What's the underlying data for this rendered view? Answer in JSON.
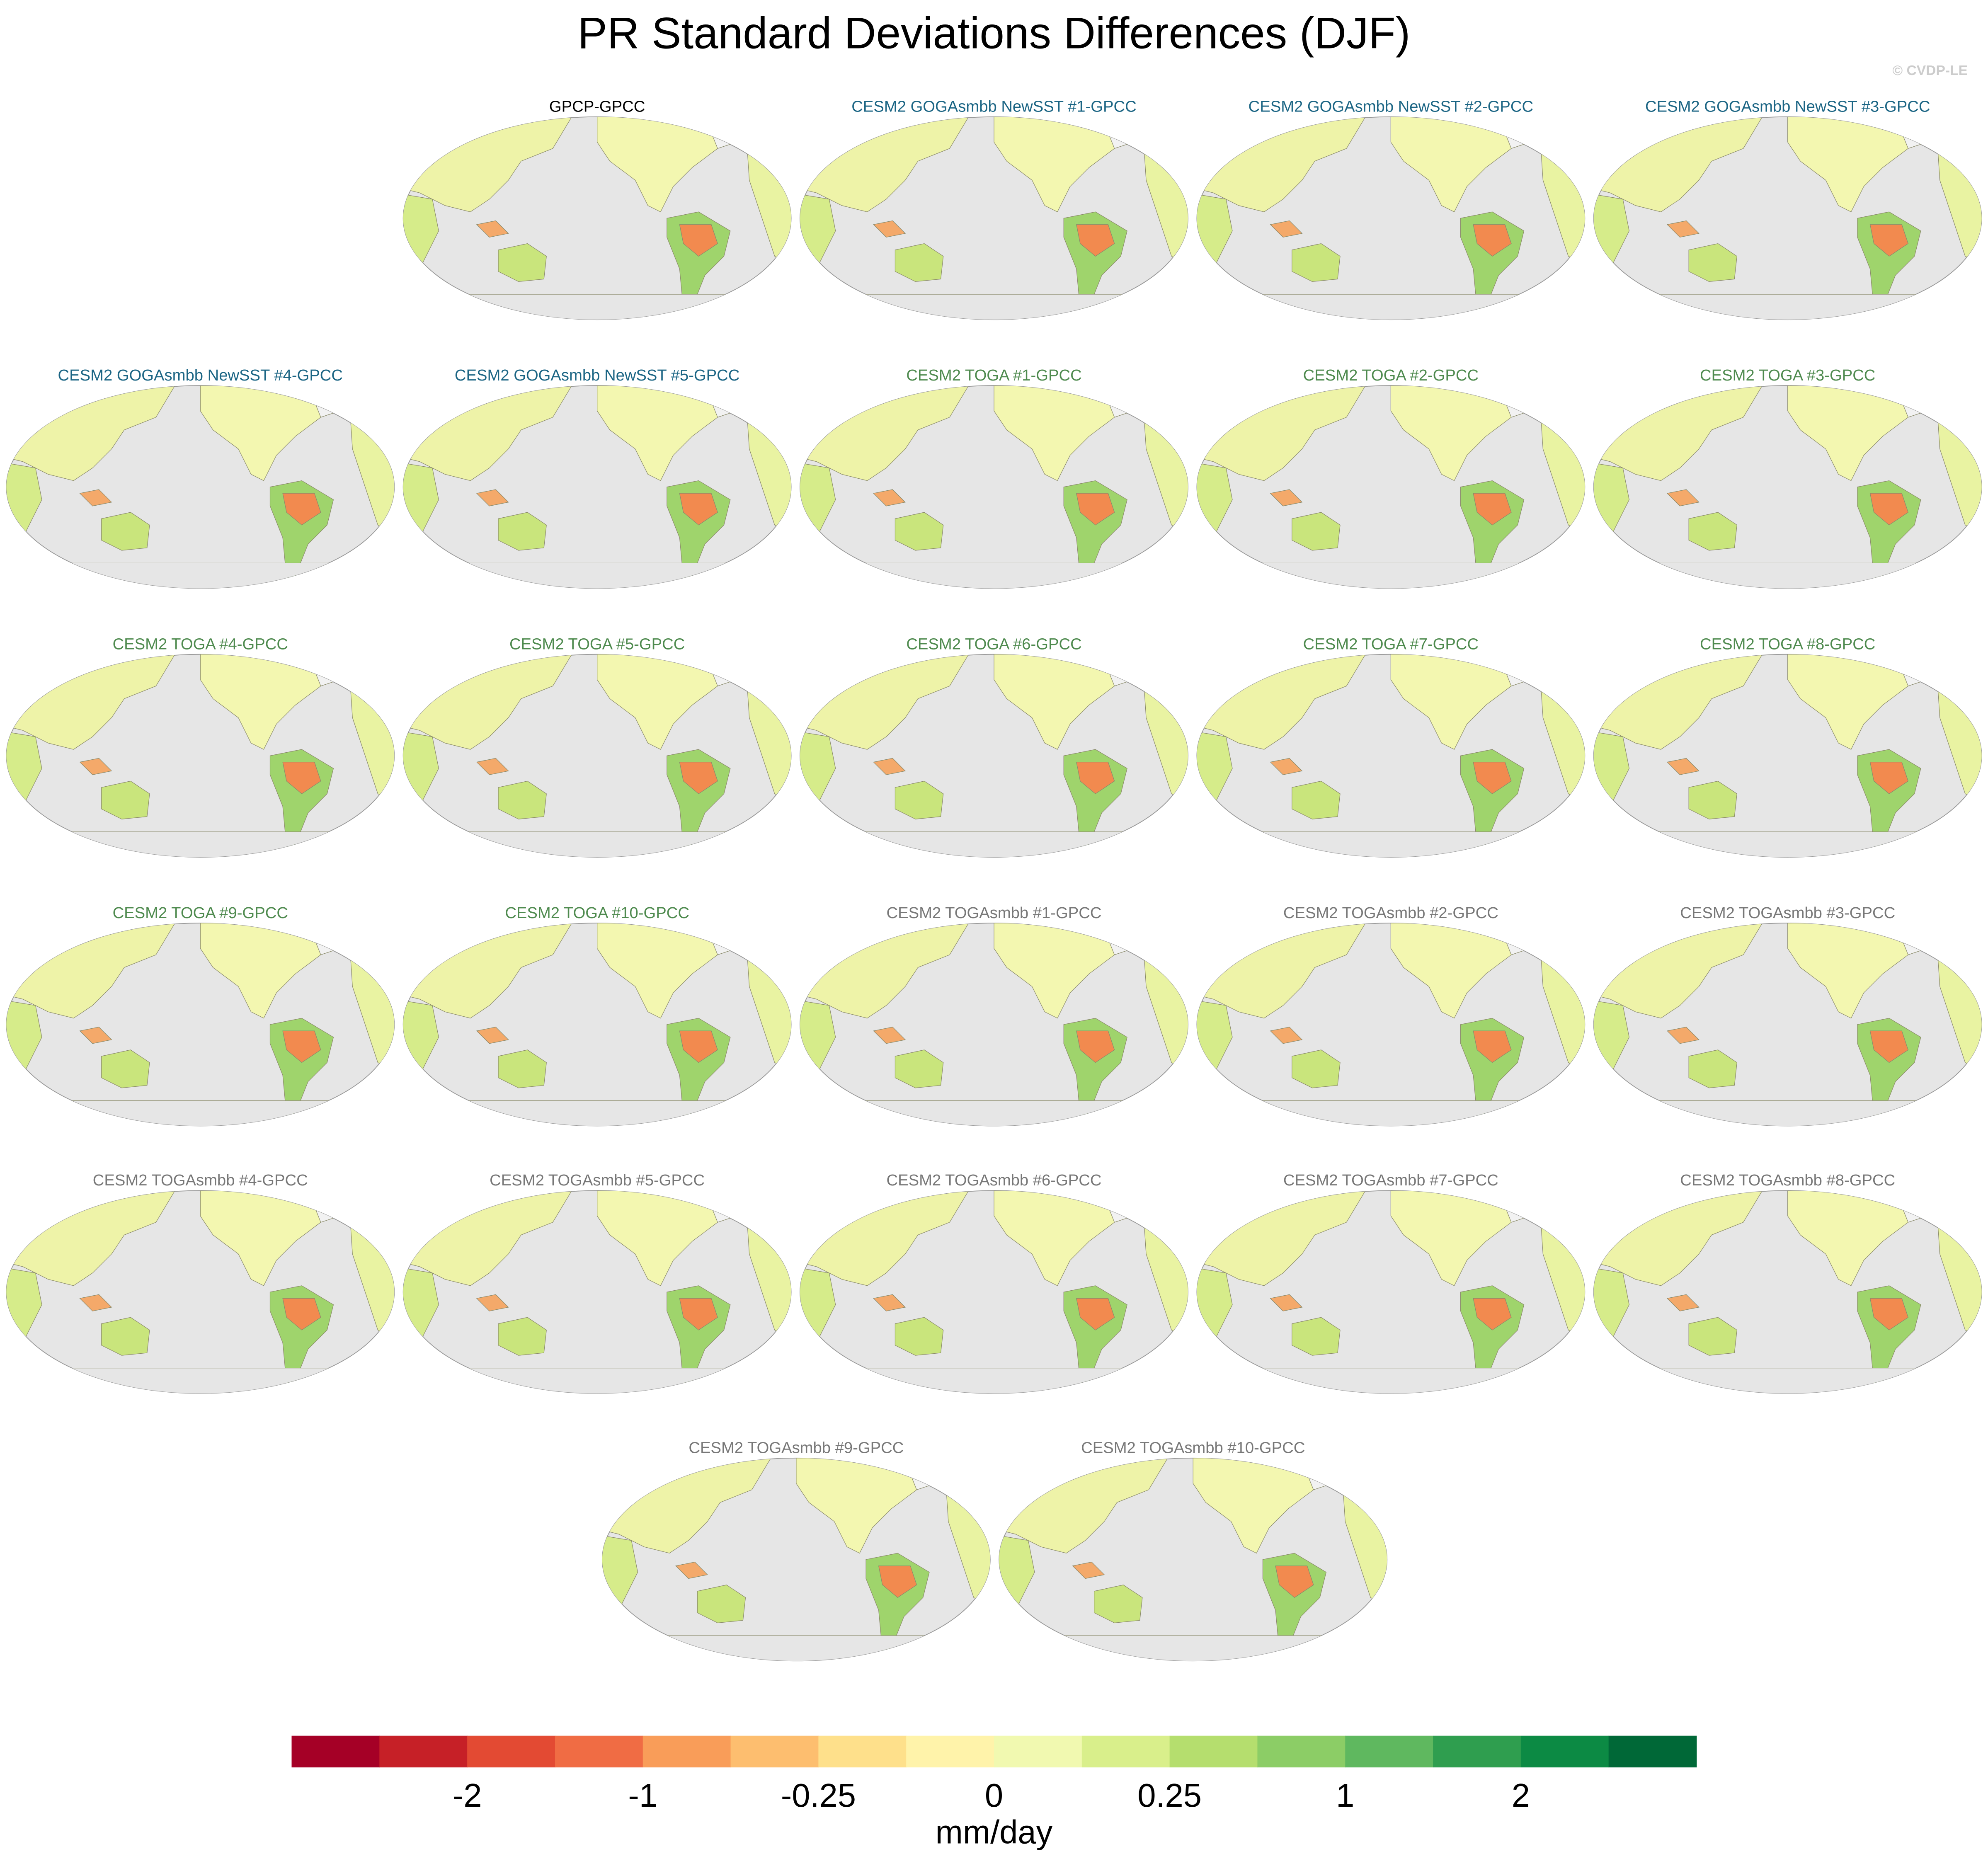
{
  "title": "PR Standard Deviations Differences (DJF)",
  "watermark": "© CVDP-LE",
  "panels": [
    {
      "title": "GPCP-GPCC",
      "color": "#000000"
    },
    {
      "title": "CESM2 GOGAsmbb NewSST #1-GPCC",
      "color": "#1b6584"
    },
    {
      "title": "CESM2 GOGAsmbb NewSST #2-GPCC",
      "color": "#1b6584"
    },
    {
      "title": "CESM2 GOGAsmbb NewSST #3-GPCC",
      "color": "#1b6584"
    },
    {
      "title": "CESM2 GOGAsmbb NewSST #4-GPCC",
      "color": "#1b6584"
    },
    {
      "title": "CESM2 GOGAsmbb NewSST #5-GPCC",
      "color": "#1b6584"
    },
    {
      "title": "CESM2 TOGA #1-GPCC",
      "color": "#4e8a4e"
    },
    {
      "title": "CESM2 TOGA #2-GPCC",
      "color": "#4e8a4e"
    },
    {
      "title": "CESM2 TOGA #3-GPCC",
      "color": "#4e8a4e"
    },
    {
      "title": "CESM2 TOGA #4-GPCC",
      "color": "#4e8a4e"
    },
    {
      "title": "CESM2 TOGA #5-GPCC",
      "color": "#4e8a4e"
    },
    {
      "title": "CESM2 TOGA #6-GPCC",
      "color": "#4e8a4e"
    },
    {
      "title": "CESM2 TOGA #7-GPCC",
      "color": "#4e8a4e"
    },
    {
      "title": "CESM2 TOGA #8-GPCC",
      "color": "#4e8a4e"
    },
    {
      "title": "CESM2 TOGA #9-GPCC",
      "color": "#4e8a4e"
    },
    {
      "title": "CESM2 TOGA #10-GPCC",
      "color": "#4e8a4e"
    },
    {
      "title": "CESM2 TOGAsmbb #1-GPCC",
      "color": "#777777"
    },
    {
      "title": "CESM2 TOGAsmbb #2-GPCC",
      "color": "#777777"
    },
    {
      "title": "CESM2 TOGAsmbb #3-GPCC",
      "color": "#777777"
    },
    {
      "title": "CESM2 TOGAsmbb #4-GPCC",
      "color": "#777777"
    },
    {
      "title": "CESM2 TOGAsmbb #5-GPCC",
      "color": "#777777"
    },
    {
      "title": "CESM2 TOGAsmbb #6-GPCC",
      "color": "#777777"
    },
    {
      "title": "CESM2 TOGAsmbb #7-GPCC",
      "color": "#777777"
    },
    {
      "title": "CESM2 TOGAsmbb #8-GPCC",
      "color": "#777777"
    },
    {
      "title": "CESM2 TOGAsmbb #9-GPCC",
      "color": "#777777"
    },
    {
      "title": "CESM2 TOGAsmbb #10-GPCC",
      "color": "#777777"
    }
  ],
  "colorbar": {
    "colors": [
      "#a50026",
      "#c62027",
      "#e34a33",
      "#f06c44",
      "#f99d59",
      "#fdbe6f",
      "#fee08b",
      "#fff3aa",
      "#f1f9b0",
      "#d9ef8b",
      "#b5de6e",
      "#8ccd66",
      "#5fb85f",
      "#2f9e4f",
      "#0c8a44",
      "#006837"
    ],
    "levels": [
      null,
      -2,
      null,
      -1,
      null,
      -0.25,
      null,
      0,
      null,
      0.25,
      null,
      1,
      null,
      2,
      null
    ],
    "label": "mm/day"
  }
}
